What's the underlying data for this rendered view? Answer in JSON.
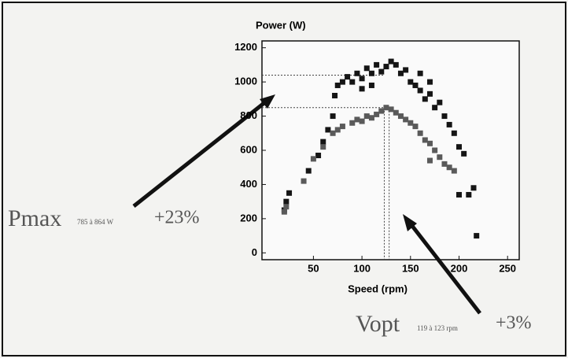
{
  "chart_data": {
    "type": "scatter",
    "y_label": "Power (W)",
    "x_label": "Speed (rpm)",
    "xlim": [
      -3,
      262
    ],
    "ylim": [
      -40,
      1240
    ],
    "xticks": [
      50,
      100,
      150,
      200,
      250
    ],
    "yticks": [
      0,
      200,
      400,
      600,
      800,
      1000,
      1200
    ],
    "grid": false,
    "series": [
      {
        "color": "#151515",
        "x": [
          25,
          22,
          20,
          45,
          55,
          60,
          65,
          70,
          72,
          75,
          80,
          85,
          90,
          95,
          100,
          105,
          110,
          115,
          120,
          125,
          130,
          135,
          140,
          145,
          150,
          155,
          160,
          165,
          170,
          175,
          180,
          185,
          190,
          195,
          200,
          205,
          210,
          215,
          218,
          200,
          170,
          160,
          100,
          110
        ],
        "values": [
          350,
          300,
          250,
          480,
          570,
          650,
          720,
          800,
          920,
          980,
          1000,
          1030,
          1000,
          1050,
          1020,
          1080,
          1050,
          1100,
          1060,
          1090,
          1120,
          1100,
          1050,
          1070,
          1000,
          980,
          950,
          900,
          930,
          850,
          880,
          800,
          750,
          700,
          620,
          580,
          340,
          380,
          100,
          340,
          1000,
          1050,
          960,
          980
        ]
      },
      {
        "color": "#5a5a5a",
        "x": [
          20,
          22,
          40,
          50,
          60,
          70,
          75,
          80,
          90,
          95,
          100,
          105,
          110,
          115,
          120,
          125,
          130,
          135,
          140,
          145,
          150,
          155,
          160,
          165,
          170,
          175,
          180,
          185,
          190,
          195,
          170
        ],
        "values": [
          240,
          270,
          420,
          550,
          620,
          700,
          720,
          740,
          760,
          780,
          770,
          800,
          790,
          810,
          830,
          850,
          840,
          820,
          800,
          780,
          760,
          740,
          700,
          660,
          640,
          600,
          560,
          520,
          500,
          480,
          540
        ]
      }
    ],
    "ref_y": [
      1040,
      850
    ],
    "ref_x": [
      123,
      128
    ],
    "annotations": [
      {
        "label": "Pmax",
        "detail": "785 à 864 W",
        "change": "+23%"
      },
      {
        "label": "Vopt",
        "detail": "119 à 123 rpm",
        "change": "+3%"
      }
    ]
  }
}
